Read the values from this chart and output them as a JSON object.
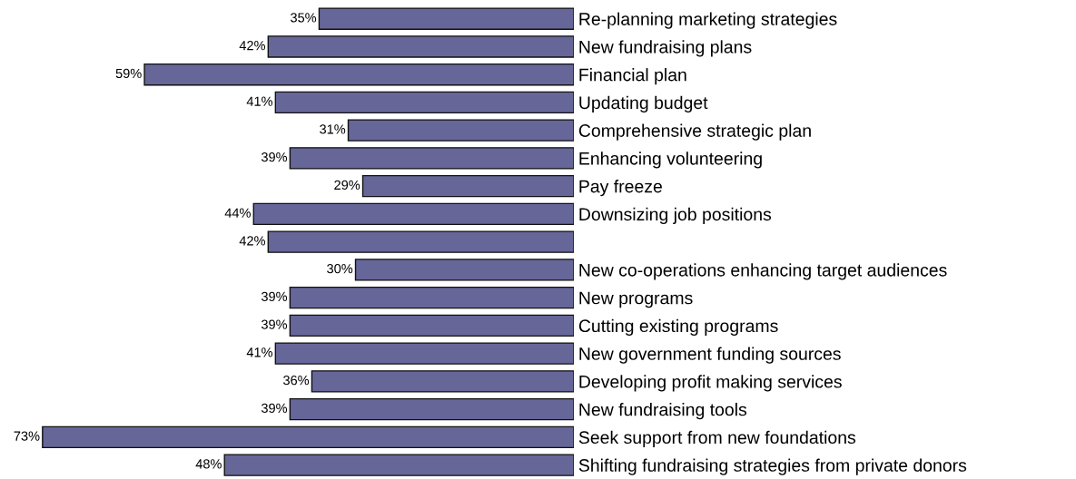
{
  "chart_data": {
    "type": "bar",
    "orientation": "horizontal",
    "categories": [
      "Re-planning marketing strategies",
      "New fundraising plans",
      "Financial plan",
      "Updating budget",
      "Comprehensive strategic plan",
      "Enhancing volunteering",
      "Pay freeze",
      "Downsizing job positions",
      null,
      "New co-operations enhancing target audiences",
      "New programs",
      "Cutting existing programs",
      "New government funding sources",
      "Developing profit making services",
      "New fundraising tools",
      "Seek support from new foundations",
      "Shifting fundraising strategies from private donors"
    ],
    "values": [
      35,
      42,
      59,
      41,
      31,
      39,
      29,
      44,
      42,
      30,
      39,
      39,
      41,
      36,
      39,
      73,
      48
    ],
    "value_labels": [
      "35%",
      "42%",
      "59%",
      "41%",
      "31%",
      "39%",
      "29%",
      "44%",
      "42%",
      "30%",
      "39%",
      "39%",
      "41%",
      "36%",
      "39%",
      "73%",
      "48%"
    ],
    "color": "#666699",
    "tick_labels": "y",
    "grid": false,
    "legend": false
  }
}
